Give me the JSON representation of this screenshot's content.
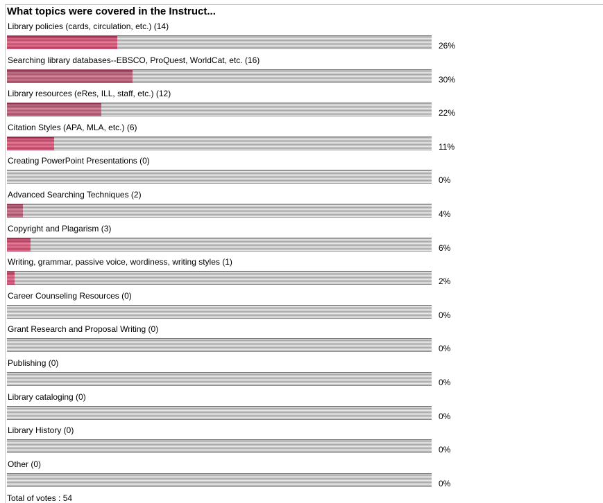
{
  "poll": {
    "title": "What topics were covered in the Instruct...",
    "total_votes_text": "Total of votes : 54"
  },
  "colors": {
    "bar_fill": "#b03a5a",
    "bar_track": "#b8b8b8"
  },
  "chart_data": {
    "type": "bar",
    "orientation": "horizontal",
    "title": "What topics were covered in the Instruct...",
    "categories": [
      "Library policies (cards, circulation, etc.) (14)",
      "Searching library databases--EBSCO, ProQuest, WorldCat, etc. (16)",
      "Library resources (eRes, ILL, staff, etc.) (12)",
      "Citation Styles (APA, MLA, etc.) (6)",
      "Creating PowerPoint Presentations (0)",
      "Advanced Searching Techniques (2)",
      "Copyright and Plagarism (3)",
      "Writing, grammar, passive voice, wordiness, writing styles (1)",
      "Career Counseling Resources (0)",
      "Grant Research and Proposal Writing (0)",
      "Publishing (0)",
      "Library cataloging (0)",
      "Library History (0)",
      "Other (0)"
    ],
    "votes": [
      14,
      16,
      12,
      6,
      0,
      2,
      3,
      1,
      0,
      0,
      0,
      0,
      0,
      0
    ],
    "percent_labels": [
      "26%",
      "30%",
      "22%",
      "11%",
      "0%",
      "4%",
      "6%",
      "2%",
      "0%",
      "0%",
      "0%",
      "0%",
      "0%",
      "0%"
    ],
    "total_votes": 54
  }
}
